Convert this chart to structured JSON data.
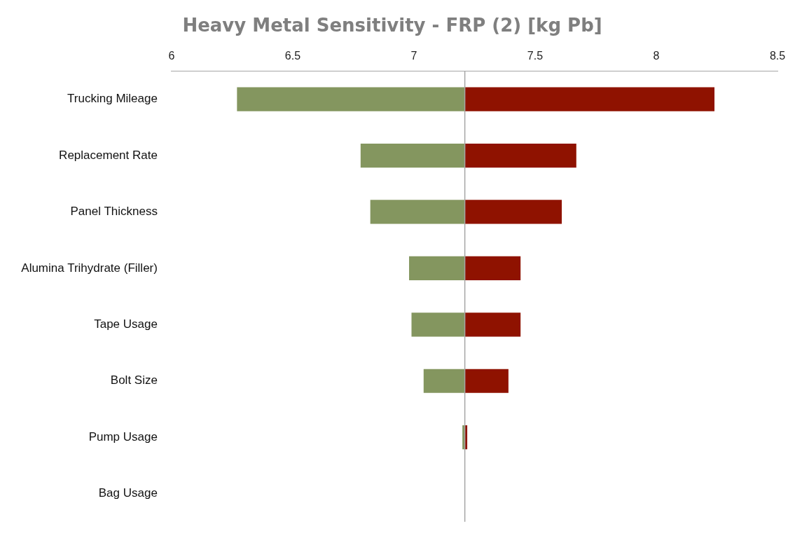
{
  "chart_data": {
    "type": "bar",
    "orientation": "horizontal",
    "title": "Heavy Metal Sensitivity - FRP (2) [kg Pb]",
    "categories": [
      "Trucking Mileage",
      "Replacement Rate",
      "Panel Thickness",
      "Alumina Trihydrate (Filler)",
      "Tape Usage",
      "Bolt Size",
      "Pump Usage",
      "Bag Usage"
    ],
    "series": [
      {
        "color": "#84965f",
        "base": [
          6.27,
          6.78,
          6.82,
          6.98,
          6.99,
          7.04,
          7.2,
          null
        ],
        "values": [
          0.94,
          0.43,
          0.39,
          0.23,
          0.22,
          0.17,
          0.01,
          null
        ]
      },
      {
        "color": "#8f1200",
        "base": [
          7.21,
          7.21,
          7.21,
          7.21,
          7.21,
          7.21,
          7.21,
          null
        ],
        "values": [
          1.03,
          0.46,
          0.4,
          0.23,
          0.23,
          0.18,
          0.01,
          null
        ]
      }
    ],
    "xlim": [
      6,
      8.5
    ],
    "xticks": [
      6,
      6.5,
      7,
      7.5,
      8,
      8.5
    ],
    "ref_lines": [
      {
        "axis": "x",
        "value": 7.21,
        "color": "#a6a6a6"
      }
    ],
    "grid": false,
    "legend": false
  }
}
